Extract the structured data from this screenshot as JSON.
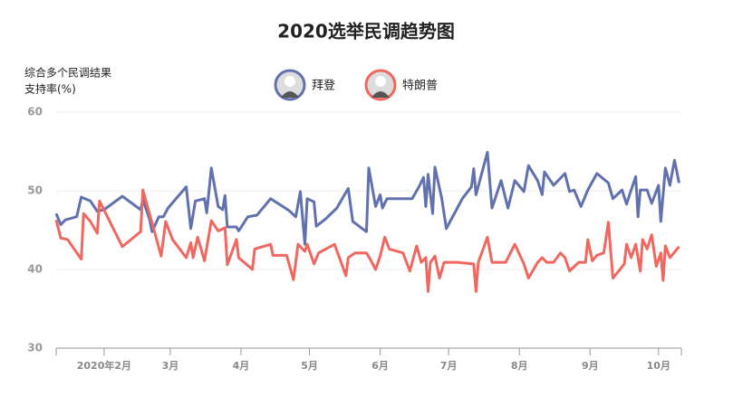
{
  "chart_data": {
    "type": "line",
    "title": "2020选举民调趋势图",
    "ylabel": [
      "综合多个民调结果",
      "支持率(%)"
    ],
    "xlim": [
      11,
      285
    ],
    "ylim": [
      30,
      60
    ],
    "yticks": [
      30,
      40,
      50,
      60
    ],
    "xticks": [
      {
        "value": 32,
        "label": "2020年2月"
      },
      {
        "value": 61,
        "label": "3月"
      },
      {
        "value": 92,
        "label": "4月"
      },
      {
        "value": 122,
        "label": "5月"
      },
      {
        "value": 153,
        "label": "6月"
      },
      {
        "value": 183,
        "label": "7月"
      },
      {
        "value": 214,
        "label": "8月"
      },
      {
        "value": 245,
        "label": "9月"
      },
      {
        "value": 275,
        "label": "10月"
      }
    ],
    "grid": true,
    "series": [
      {
        "name": "拜登",
        "color": "#6171ad",
        "x": [
          11,
          13,
          15,
          20,
          22,
          26,
          29,
          32,
          40,
          48,
          49,
          52,
          53,
          56,
          58,
          60,
          68,
          70,
          72,
          76,
          77,
          79,
          82,
          84,
          85,
          86,
          90,
          91,
          95,
          99,
          105,
          113,
          116,
          118,
          120,
          121,
          124,
          125,
          129,
          134,
          139,
          141,
          147,
          148,
          151,
          153,
          154,
          156,
          167,
          170,
          172,
          173,
          174,
          176,
          177,
          180,
          182,
          189,
          193,
          194,
          195,
          200,
          202,
          206,
          209,
          212,
          216,
          218,
          222,
          224,
          225,
          229,
          234,
          236,
          238,
          241,
          244,
          248,
          253,
          255,
          259,
          261,
          263,
          265,
          266,
          267,
          270,
          272,
          275,
          276,
          278,
          280,
          282,
          284
        ],
        "values": [
          47.1,
          45.7,
          46.3,
          46.7,
          49.2,
          48.7,
          47.4,
          47.6,
          49.3,
          47.6,
          48.9,
          46.3,
          44.8,
          46.7,
          46.7,
          47.8,
          50.5,
          45.2,
          48.7,
          49,
          47.2,
          52.9,
          48,
          47.6,
          49.4,
          45.4,
          45.4,
          44.9,
          46.7,
          46.9,
          49,
          47.5,
          46.7,
          49.9,
          43.2,
          49,
          48.6,
          45.5,
          46.4,
          47.8,
          50.3,
          46.1,
          44.8,
          52.9,
          48,
          49.5,
          47.8,
          49,
          49,
          50.5,
          51.7,
          48,
          52.1,
          47.1,
          53,
          49,
          45.2,
          49,
          50.5,
          52.8,
          49.5,
          54.9,
          47.8,
          51.3,
          47.8,
          51.3,
          49.9,
          53.2,
          51.3,
          49.5,
          52.4,
          50.7,
          52.2,
          49.9,
          50.1,
          48,
          50.1,
          52.2,
          51,
          49,
          50.1,
          48.3,
          50.1,
          51.8,
          46.7,
          50.1,
          50.1,
          48.4,
          50.7,
          46.1,
          52.9,
          50.7,
          53.9,
          51
        ]
      },
      {
        "name": "特朗普",
        "color": "#f0675f",
        "x": [
          11,
          13,
          16,
          22,
          23,
          26,
          29,
          30,
          40,
          48,
          49,
          54,
          57,
          59,
          62,
          68,
          70,
          71,
          73,
          76,
          79,
          82,
          85,
          86,
          90,
          91,
          97,
          98,
          105,
          106,
          112,
          115,
          117,
          120,
          121,
          124,
          126,
          133,
          138,
          139,
          142,
          147,
          149,
          151,
          153,
          155,
          157,
          163,
          166,
          169,
          171,
          173,
          174,
          175,
          177,
          179,
          181,
          187,
          194,
          195,
          196,
          200,
          202,
          208,
          212,
          216,
          218,
          222,
          224,
          226,
          229,
          232,
          234,
          236,
          240,
          243,
          244,
          246,
          248,
          251,
          253,
          255,
          260,
          261,
          263,
          265,
          267,
          268,
          270,
          272,
          274,
          276,
          277,
          278,
          280,
          284
        ],
        "values": [
          46.3,
          44,
          43.8,
          41.3,
          47.1,
          46.1,
          44.6,
          48.7,
          42.9,
          44.8,
          50.1,
          44.9,
          41.7,
          46.1,
          43.8,
          41.5,
          43.4,
          41.5,
          44.1,
          41.1,
          46.2,
          44.9,
          45.3,
          40.6,
          43.8,
          41.5,
          40,
          42.6,
          43.2,
          41.8,
          41.8,
          38.7,
          43.2,
          42.3,
          43.2,
          40.7,
          42.1,
          43.2,
          39.2,
          41.5,
          42.1,
          42.1,
          41.1,
          40,
          41.7,
          44.1,
          42.6,
          42.1,
          39.8,
          43,
          40.9,
          41.5,
          37.2,
          40.9,
          41.7,
          38.9,
          40.9,
          40.9,
          40.7,
          37.2,
          40.9,
          44.1,
          40.9,
          40.9,
          43.2,
          40.7,
          38.9,
          40.9,
          41.5,
          40.9,
          40.9,
          42.1,
          41.5,
          39.8,
          40.9,
          40.9,
          43.8,
          41.1,
          41.8,
          42.1,
          46,
          38.9,
          40.7,
          43.2,
          41.5,
          43.2,
          39.8,
          43.8,
          42.6,
          44.4,
          40.4,
          42.1,
          38.6,
          43,
          41.5,
          42.9
        ]
      }
    ]
  }
}
